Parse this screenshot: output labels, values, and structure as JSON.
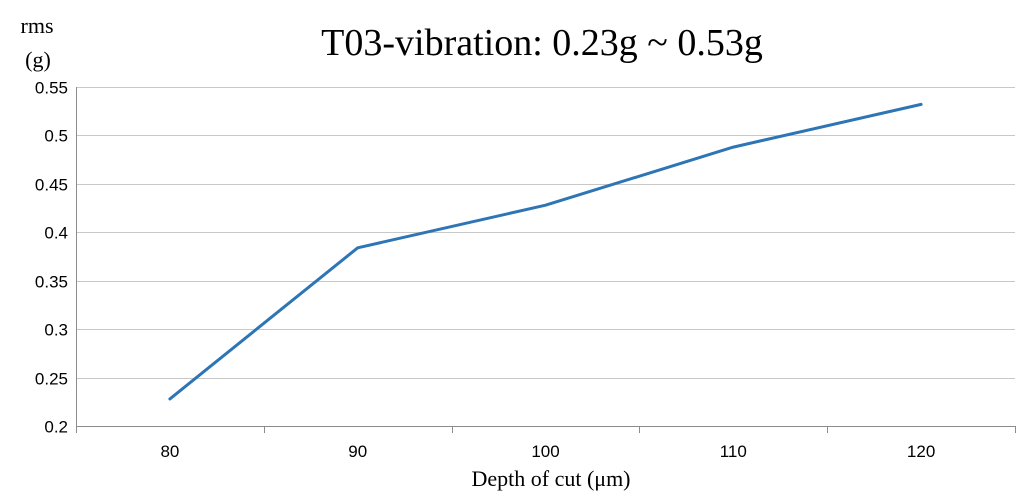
{
  "chart_data": {
    "type": "line",
    "title": "T03-vibration:  0.23g ~ 0.53g",
    "ylabel_line1": "rms",
    "ylabel_line2": "(g)",
    "xlabel": "Depth  of  cut  (μm)",
    "categories": [
      "80",
      "90",
      "100",
      "110",
      "120"
    ],
    "series": [
      {
        "name": "T03-vibration",
        "values": [
          0.228,
          0.384,
          0.428,
          0.488,
          0.532
        ],
        "color": "#2e75b6"
      }
    ],
    "ylim": [
      0.2,
      0.55
    ],
    "yticks": [
      0.2,
      0.25,
      0.3,
      0.35,
      0.4,
      0.45,
      0.5,
      0.55
    ],
    "ytick_labels": [
      "0.2",
      "0.25",
      "0.3",
      "0.35",
      "0.4",
      "0.45",
      "0.5",
      "0.55"
    ],
    "grid": true,
    "colors": {
      "grid": "#c8c8c8",
      "axis": "#8c8c8c",
      "text": "#000000"
    }
  }
}
